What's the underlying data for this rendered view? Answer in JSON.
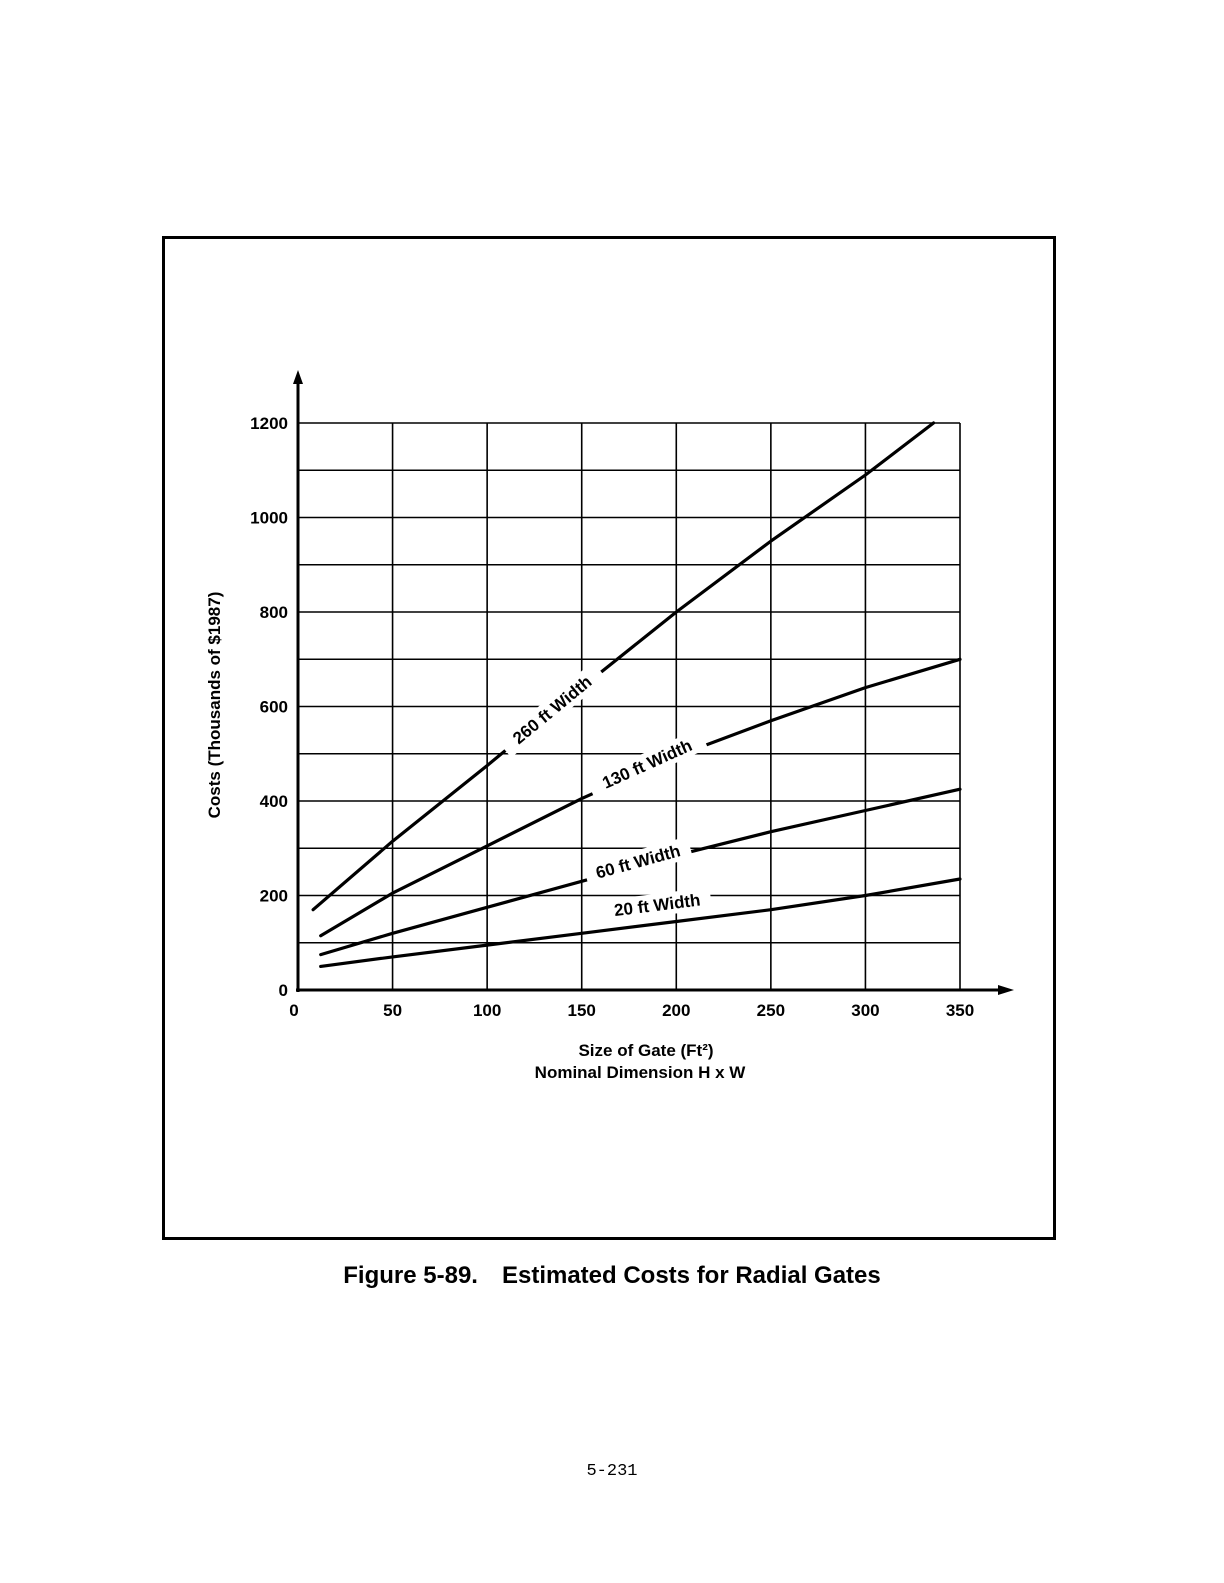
{
  "figure": {
    "number": "Figure 5-89.",
    "title": "Estimated Costs for Radial Gates",
    "page_number": "5-231"
  },
  "chart_data": {
    "type": "line",
    "title": "Estimated Costs for Radial Gates",
    "xlabel": "Size of Gate (Ft²)",
    "xlabel_line2": "Nominal Dimension H x W",
    "ylabel": "Costs (Thousands of $1987)",
    "xlim": [
      0,
      350
    ],
    "ylim": [
      0,
      1200
    ],
    "x_ticks": [
      0,
      50,
      100,
      150,
      200,
      250,
      300,
      350
    ],
    "y_ticks": [
      0,
      200,
      400,
      600,
      800,
      1000,
      1200
    ],
    "y_grid_step": 100,
    "grid": true,
    "series": [
      {
        "name": "260 ft Width",
        "x": [
          8,
          50,
          100,
          150,
          200,
          250,
          300,
          336
        ],
        "y": [
          170,
          315,
          475,
          640,
          800,
          950,
          1090,
          1200
        ]
      },
      {
        "name": "130 ft Width",
        "x": [
          12,
          50,
          100,
          150,
          200,
          250,
          300,
          350
        ],
        "y": [
          115,
          205,
          305,
          405,
          495,
          570,
          640,
          700
        ]
      },
      {
        "name": "60 ft Width",
        "x": [
          12,
          50,
          100,
          150,
          200,
          250,
          300,
          350
        ],
        "y": [
          75,
          120,
          175,
          230,
          285,
          335,
          380,
          425
        ]
      },
      {
        "name": "20 ft Width",
        "x": [
          12,
          50,
          100,
          150,
          200,
          250,
          300,
          350
        ],
        "y": [
          50,
          70,
          95,
          120,
          145,
          170,
          200,
          235
        ]
      }
    ]
  }
}
